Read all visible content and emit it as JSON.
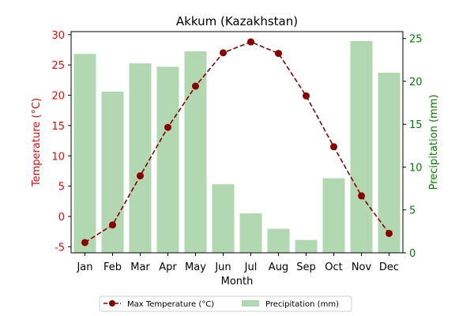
{
  "chart_data": {
    "type": "bar+line",
    "title": "Akkum (Kazakhstan)",
    "xlabel": "Month",
    "categories": [
      "Jan",
      "Feb",
      "Mar",
      "Apr",
      "May",
      "Jun",
      "Jul",
      "Aug",
      "Sep",
      "Oct",
      "Nov",
      "Dec"
    ],
    "left_axis": {
      "label": "Temperature (°C)",
      "color": "#ff0000",
      "ylim": [
        -6,
        30.5
      ],
      "ticks": [
        -5,
        0,
        5,
        10,
        15,
        20,
        25,
        30
      ]
    },
    "right_axis": {
      "label": "Precipitation (mm)",
      "color": "#008000",
      "ylim": [
        0,
        25.8
      ],
      "ticks": [
        0,
        5,
        10,
        15,
        20,
        25
      ]
    },
    "series": [
      {
        "name": "Max Temperature (°C)",
        "type": "line",
        "axis": "left",
        "color": "#8b0000",
        "line_style": "dashed",
        "marker": "circle",
        "values": [
          -4.3,
          -1.4,
          6.7,
          14.7,
          21.5,
          27.0,
          28.8,
          26.9,
          19.9,
          11.5,
          3.4,
          -2.8
        ]
      },
      {
        "name": "Precipitation (mm)",
        "type": "bar",
        "axis": "right",
        "color": "#b2d8b2",
        "values": [
          23.2,
          18.8,
          22.1,
          21.7,
          23.5,
          8.0,
          4.6,
          2.8,
          1.5,
          8.7,
          24.7,
          21.0
        ]
      }
    ],
    "legend": {
      "position": "bottom-center",
      "columns": 2
    },
    "grid": false
  }
}
